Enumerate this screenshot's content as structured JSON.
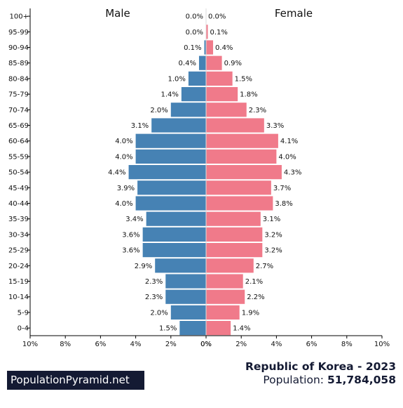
{
  "chart_data": {
    "type": "bar",
    "subtype": "population-pyramid",
    "categories": [
      "100+",
      "95-99",
      "90-94",
      "85-89",
      "80-84",
      "75-79",
      "70-74",
      "65-69",
      "60-64",
      "55-59",
      "50-54",
      "45-49",
      "40-44",
      "35-39",
      "30-34",
      "25-29",
      "20-24",
      "15-19",
      "10-14",
      "5-9",
      "0-4"
    ],
    "series": [
      {
        "name": "Male",
        "color": "#4682b4",
        "values": [
          0.0,
          0.0,
          0.1,
          0.4,
          1.0,
          1.4,
          2.0,
          3.1,
          4.0,
          4.0,
          4.4,
          3.9,
          4.0,
          3.4,
          3.6,
          3.6,
          2.9,
          2.3,
          2.3,
          2.0,
          1.5
        ],
        "labels": [
          "0.0%",
          "0.0%",
          "0.1%",
          "0.4%",
          "1.0%",
          "1.4%",
          "2.0%",
          "3.1%",
          "4.0%",
          "4.0%",
          "4.4%",
          "3.9%",
          "4.0%",
          "3.4%",
          "3.6%",
          "3.6%",
          "2.9%",
          "2.3%",
          "2.3%",
          "2.0%",
          "1.5%"
        ]
      },
      {
        "name": "Female",
        "color": "#f07a8a",
        "values": [
          0.0,
          0.1,
          0.4,
          0.9,
          1.5,
          1.8,
          2.3,
          3.3,
          4.1,
          4.0,
          4.3,
          3.7,
          3.8,
          3.1,
          3.2,
          3.2,
          2.7,
          2.1,
          2.2,
          1.9,
          1.4
        ],
        "labels": [
          "0.0%",
          "0.1%",
          "0.4%",
          "0.9%",
          "1.5%",
          "1.8%",
          "2.3%",
          "3.3%",
          "4.1%",
          "4.0%",
          "4.3%",
          "3.7%",
          "3.8%",
          "3.1%",
          "3.2%",
          "3.2%",
          "2.7%",
          "2.1%",
          "2.2%",
          "1.9%",
          "1.4%"
        ]
      }
    ],
    "xlim": [
      0,
      10
    ],
    "male_ticks": [
      "10%",
      "8%",
      "6%",
      "4%",
      "2%",
      "0%"
    ],
    "female_ticks": [
      "0%",
      "2%",
      "4%",
      "6%",
      "8%",
      "10%"
    ],
    "grid": false
  },
  "footer": {
    "brand": "PopulationPyramid.net",
    "country_year": "Republic of Korea - 2023",
    "population_label": "Population: ",
    "population_value": "51,784,058"
  }
}
